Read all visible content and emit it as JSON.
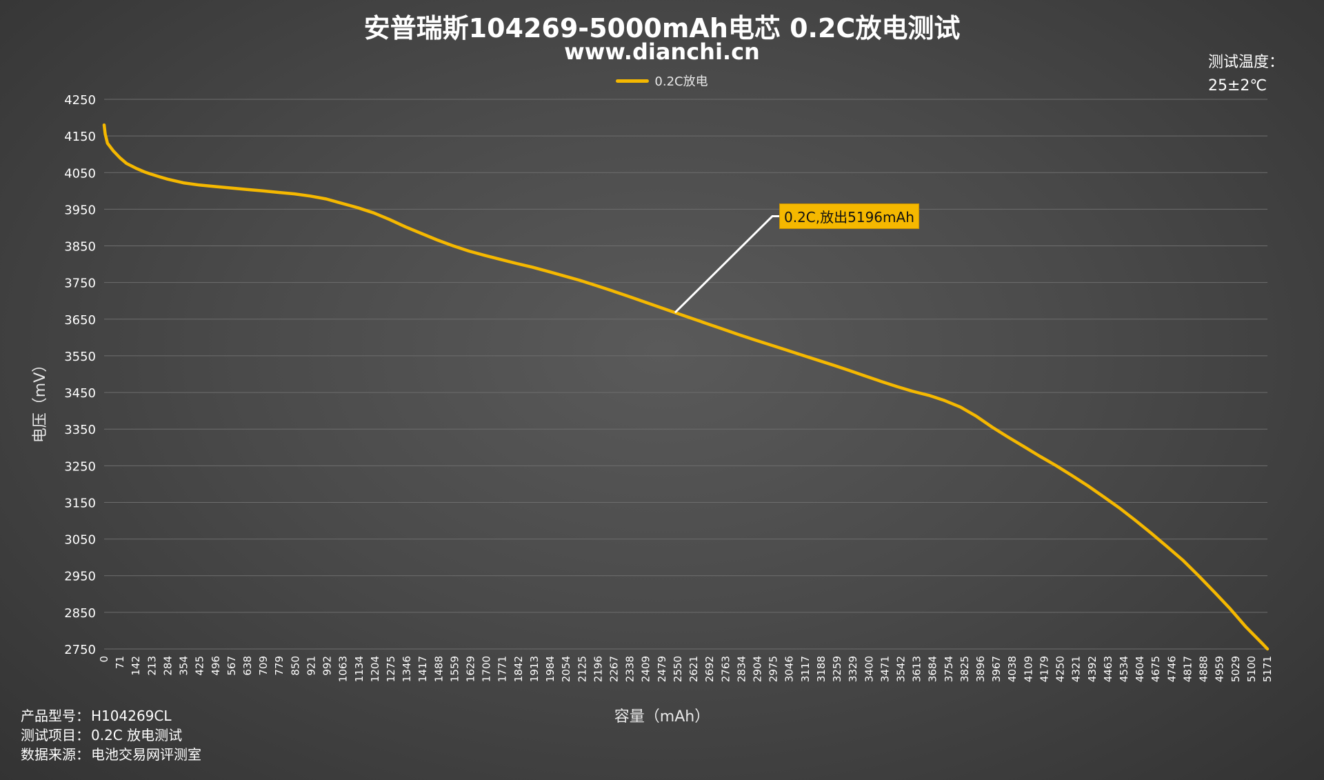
{
  "chart_data": {
    "type": "line",
    "title": "安普瑞斯104269-5000mAh电芯 0.2C放电测试",
    "subtitle": "www.dianchi.cn",
    "xlabel": "容量（mAh）",
    "ylabel": "电压（mV）",
    "ylim": [
      2750,
      4250
    ],
    "ytick_step": 100,
    "yticks": [
      "2750",
      "2850",
      "2950",
      "3050",
      "3150",
      "3250",
      "3350",
      "3450",
      "3550",
      "3650",
      "3750",
      "3850",
      "3950",
      "4050",
      "4150",
      "4250"
    ],
    "xticks": [
      "0",
      "71",
      "142",
      "213",
      "284",
      "354",
      "425",
      "496",
      "567",
      "638",
      "709",
      "779",
      "850",
      "921",
      "992",
      "1063",
      "1134",
      "1204",
      "1275",
      "1346",
      "1417",
      "1488",
      "1559",
      "1629",
      "1700",
      "1771",
      "1842",
      "1913",
      "1984",
      "2054",
      "2125",
      "2196",
      "2267",
      "2338",
      "2409",
      "2479",
      "2550",
      "2621",
      "2692",
      "2763",
      "2834",
      "2904",
      "2975",
      "3046",
      "3117",
      "3188",
      "3259",
      "3329",
      "3400",
      "3471",
      "3542",
      "3613",
      "3684",
      "3754",
      "3825",
      "3896",
      "3967",
      "4038",
      "4109",
      "4179",
      "4250",
      "4321",
      "4392",
      "4463",
      "4534",
      "4604",
      "4675",
      "4746",
      "4817",
      "4888",
      "4959",
      "5029",
      "5100",
      "5171"
    ],
    "xlim": [
      0,
      5196
    ],
    "grid": true,
    "legend_position": "top-center",
    "series": [
      {
        "name": "0.2C放电",
        "color": "#f5b800",
        "x": [
          0,
          5,
          15,
          40,
          71,
          100,
          142,
          180,
          213,
          250,
          284,
          354,
          425,
          496,
          567,
          638,
          709,
          779,
          850,
          921,
          992,
          1063,
          1134,
          1204,
          1275,
          1346,
          1417,
          1488,
          1559,
          1629,
          1700,
          1771,
          1842,
          1913,
          1984,
          2054,
          2125,
          2196,
          2267,
          2338,
          2409,
          2479,
          2550,
          2621,
          2692,
          2763,
          2834,
          2904,
          2975,
          3046,
          3117,
          3188,
          3259,
          3329,
          3400,
          3471,
          3542,
          3613,
          3684,
          3754,
          3825,
          3896,
          3967,
          4038,
          4109,
          4179,
          4250,
          4321,
          4392,
          4463,
          4534,
          4604,
          4675,
          4746,
          4817,
          4888,
          4959,
          5029,
          5100,
          5171,
          5196
        ],
        "y": [
          4180,
          4155,
          4130,
          4110,
          4090,
          4075,
          4062,
          4052,
          4045,
          4038,
          4032,
          4022,
          4016,
          4012,
          4008,
          4004,
          4000,
          3996,
          3992,
          3986,
          3978,
          3966,
          3954,
          3940,
          3922,
          3902,
          3884,
          3866,
          3850,
          3836,
          3824,
          3813,
          3802,
          3792,
          3780,
          3768,
          3756,
          3742,
          3728,
          3713,
          3698,
          3683,
          3668,
          3653,
          3638,
          3623,
          3608,
          3594,
          3580,
          3566,
          3552,
          3538,
          3524,
          3510,
          3495,
          3480,
          3466,
          3453,
          3442,
          3428,
          3410,
          3385,
          3355,
          3328,
          3302,
          3276,
          3251,
          3224,
          3196,
          3166,
          3135,
          3102,
          3067,
          3030,
          2993,
          2950,
          2905,
          2860,
          2810,
          2766,
          2750
        ]
      }
    ],
    "annotations": [
      {
        "text": "0.2C,放出5196mAh",
        "point_x": 2550,
        "point_y": 3668,
        "background": "#f5b800"
      }
    ]
  },
  "header": {
    "temp_label": "测试温度：",
    "temp_value": "25±2℃"
  },
  "info": {
    "rows": [
      {
        "key": "产品型号：",
        "value": "H104269CL"
      },
      {
        "key": "测试项目：",
        "value": "0.2C 放电测试"
      },
      {
        "key": "数据来源：",
        "value": "电池交易网评测室"
      }
    ]
  },
  "colors": {
    "grid": "#6e6e6e",
    "axis_text": "#ffffff",
    "leader_line": "#ffffff"
  }
}
